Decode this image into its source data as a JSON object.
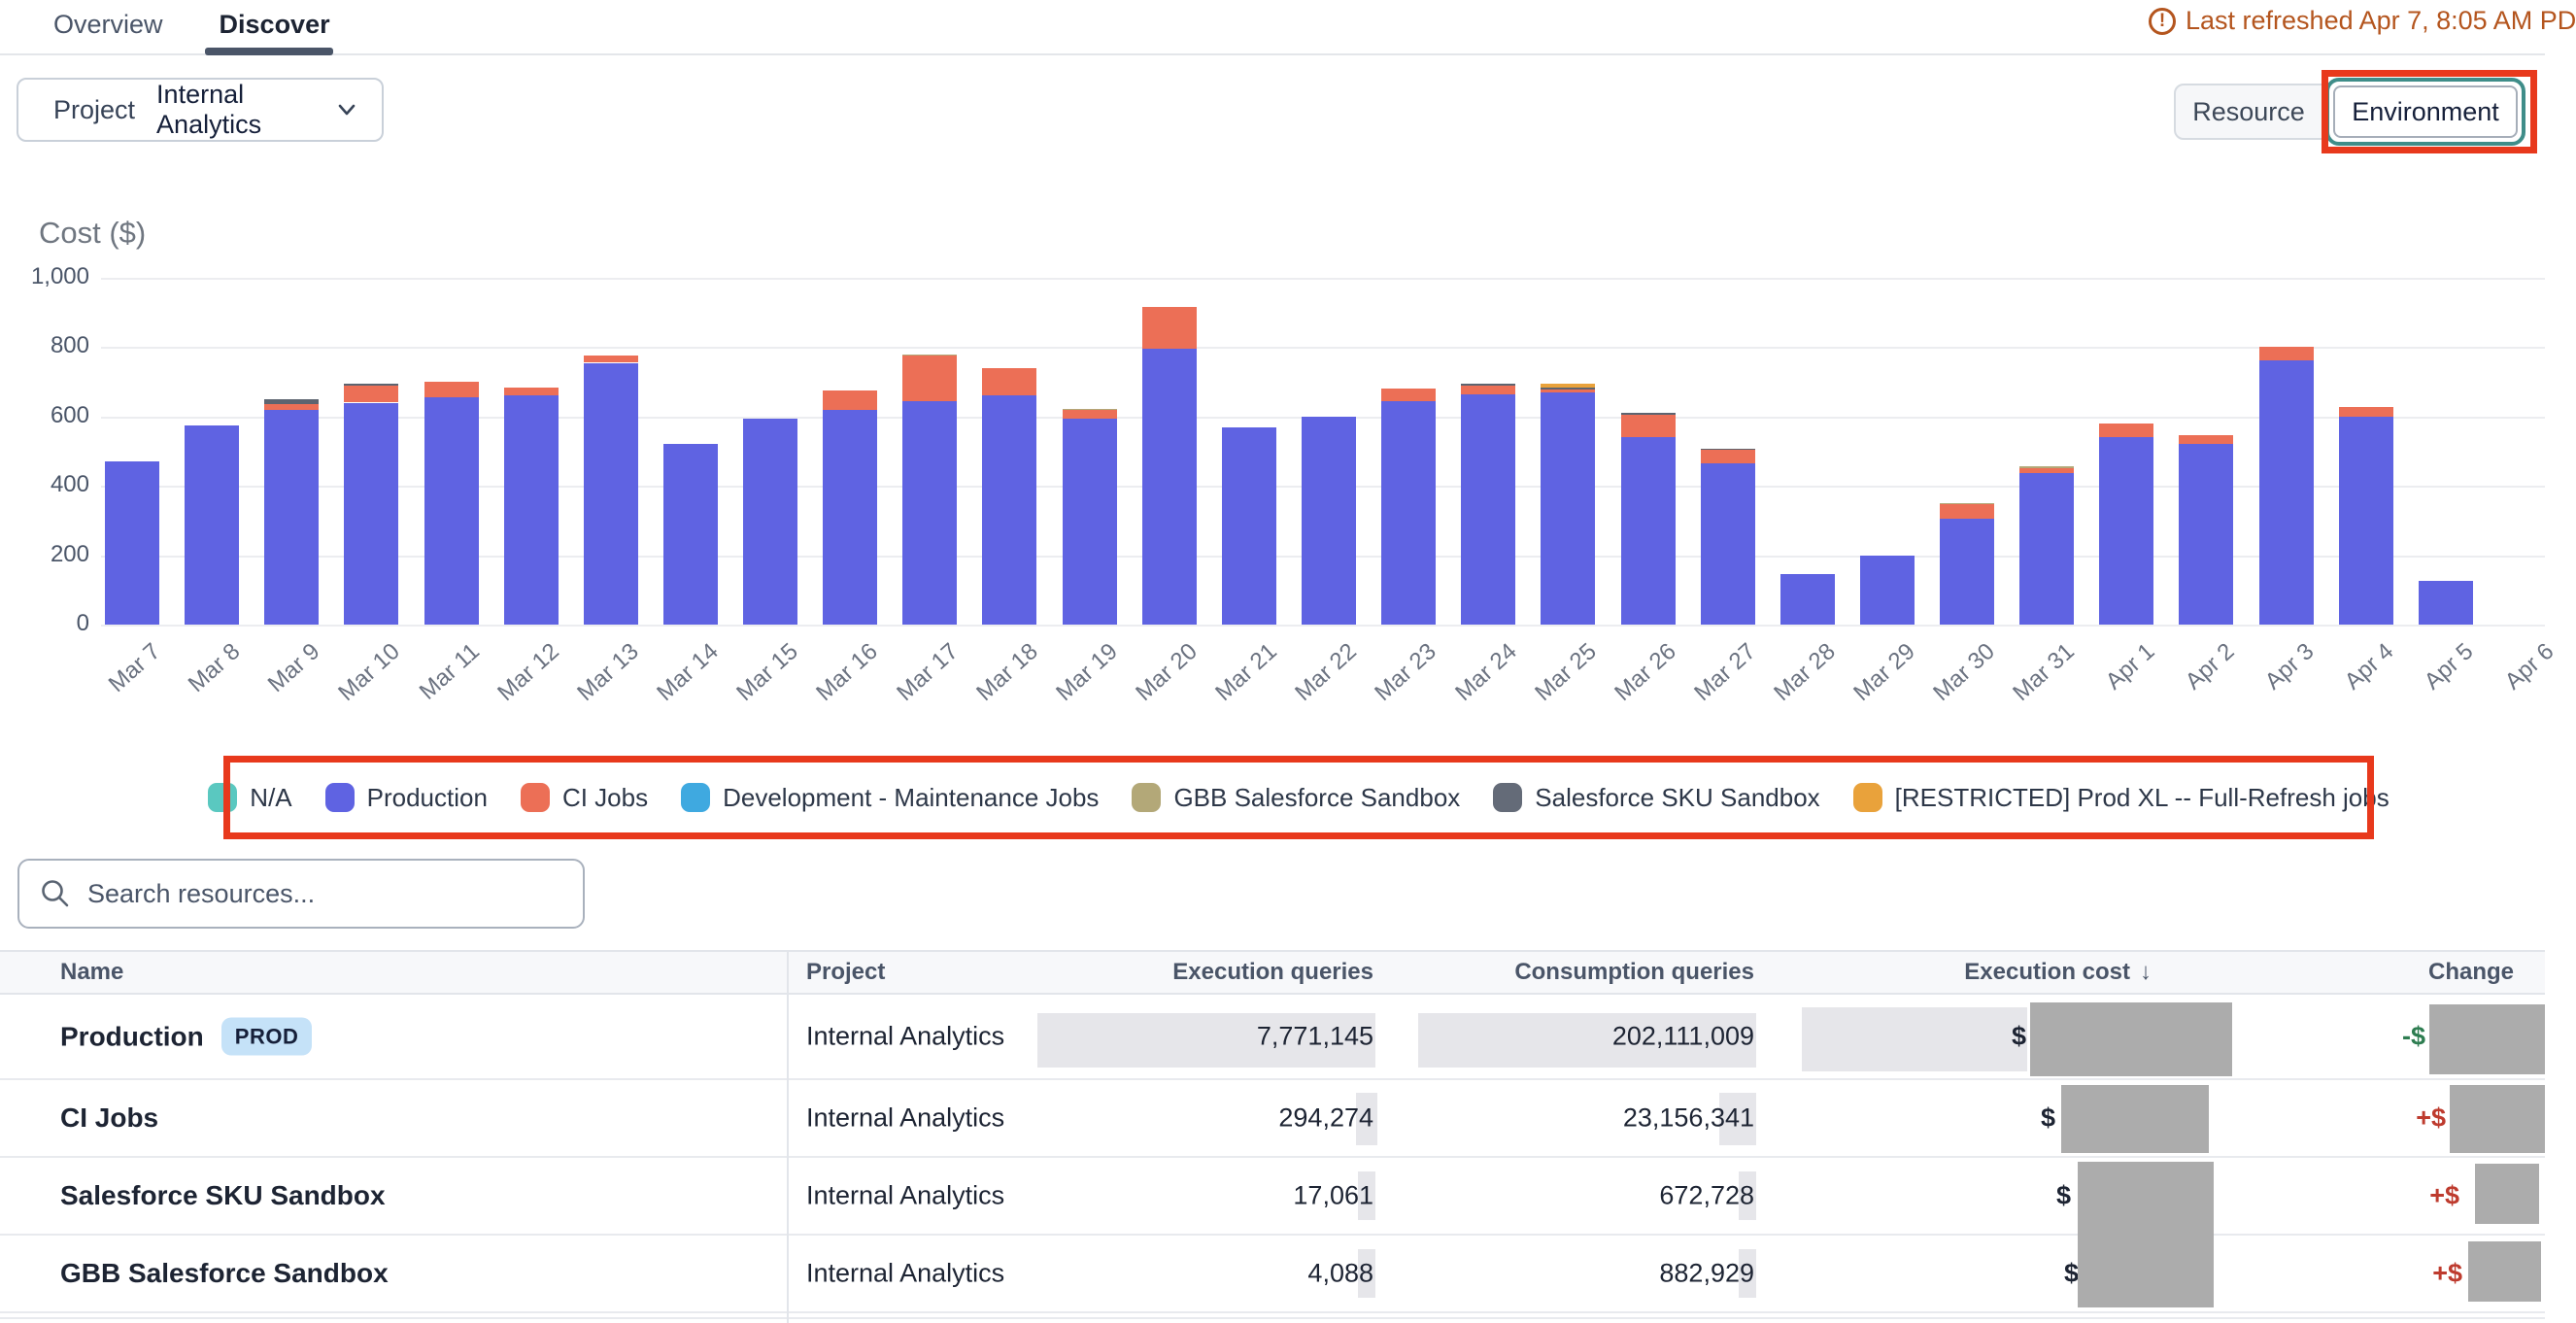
{
  "header": {
    "tabs": [
      {
        "label": "Overview",
        "active": false
      },
      {
        "label": "Discover",
        "active": true
      }
    ],
    "last_refreshed": "Last refreshed Apr 7, 8:05 AM PD",
    "warning_icon": "exclamation-circle"
  },
  "filters": {
    "project_label": "Project",
    "project_value": "Internal Analytics",
    "group_by_buttons": [
      {
        "label": "Resource",
        "selected": false
      },
      {
        "label": "Environment",
        "selected": true
      }
    ]
  },
  "chart_data": {
    "type": "bar",
    "stacked": true,
    "title": "Cost ($)",
    "ylabel": "Cost ($)",
    "ylim": [
      0,
      1000
    ],
    "ytick_values": [
      0,
      200,
      400,
      600,
      800,
      1000
    ],
    "yticks": [
      "0",
      "200",
      "400",
      "600",
      "800",
      "1,000"
    ],
    "grid": true,
    "legend_position": "bottom",
    "series_order": [
      "production",
      "ci_jobs",
      "salesforce_sku_sandbox",
      "gbb_salesforce_sandbox",
      "restricted_prod_xl"
    ],
    "series_colors": {
      "na": "#5AC8C0",
      "production": "#5F63E2",
      "ci_jobs": "#EC6F56",
      "development_maintenance": "#3FA9E0",
      "gbb_salesforce_sandbox": "#B3A878",
      "salesforce_sku_sandbox": "#5D6470",
      "restricted_prod_xl": "#E9A23B"
    },
    "legend": [
      {
        "label": "N/A",
        "color": "#5AC8C0"
      },
      {
        "label": "Production",
        "color": "#5F63E2"
      },
      {
        "label": "CI Jobs",
        "color": "#EC6F56"
      },
      {
        "label": "Development - Maintenance Jobs",
        "color": "#3FA9E0"
      },
      {
        "label": "GBB Salesforce Sandbox",
        "color": "#B3A878"
      },
      {
        "label": "Salesforce SKU Sandbox",
        "color": "#646B78"
      },
      {
        "label": "[RESTRICTED] Prod XL -- Full-Refresh jobs",
        "color": "#E9A23B"
      }
    ],
    "bars": [
      {
        "date": "Mar 7",
        "values": {
          "production": 470
        }
      },
      {
        "date": "Mar 8",
        "values": {
          "production": 575
        }
      },
      {
        "date": "Mar 9",
        "values": {
          "production": 620,
          "ci_jobs": 15,
          "salesforce_sku_sandbox": 15
        }
      },
      {
        "date": "Mar 10",
        "values": {
          "production": 640,
          "ci_jobs": 50,
          "salesforce_sku_sandbox": 5
        }
      },
      {
        "date": "Mar 11",
        "values": {
          "production": 655,
          "ci_jobs": 45
        }
      },
      {
        "date": "Mar 12",
        "values": {
          "production": 660,
          "ci_jobs": 25
        }
      },
      {
        "date": "Mar 13",
        "values": {
          "production": 755,
          "ci_jobs": 20
        }
      },
      {
        "date": "Mar 14",
        "values": {
          "production": 520
        }
      },
      {
        "date": "Mar 15",
        "values": {
          "production": 595
        }
      },
      {
        "date": "Mar 16",
        "values": {
          "production": 620,
          "ci_jobs": 55
        }
      },
      {
        "date": "Mar 17",
        "values": {
          "production": 645,
          "ci_jobs": 130,
          "gbb_salesforce_sandbox": 5
        }
      },
      {
        "date": "Mar 18",
        "values": {
          "production": 660,
          "ci_jobs": 80
        }
      },
      {
        "date": "Mar 19",
        "values": {
          "production": 595,
          "ci_jobs": 25,
          "gbb_salesforce_sandbox": 3
        }
      },
      {
        "date": "Mar 20",
        "values": {
          "production": 795,
          "ci_jobs": 120
        }
      },
      {
        "date": "Mar 21",
        "values": {
          "production": 570
        }
      },
      {
        "date": "Mar 22",
        "values": {
          "production": 600
        }
      },
      {
        "date": "Mar 23",
        "values": {
          "production": 645,
          "ci_jobs": 35
        }
      },
      {
        "date": "Mar 24",
        "values": {
          "production": 665,
          "ci_jobs": 25,
          "salesforce_sku_sandbox": 5
        }
      },
      {
        "date": "Mar 25",
        "values": {
          "production": 670,
          "ci_jobs": 8,
          "salesforce_sku_sandbox": 5,
          "restricted_prod_xl": 12
        }
      },
      {
        "date": "Mar 26",
        "values": {
          "production": 540,
          "ci_jobs": 65,
          "salesforce_sku_sandbox": 5
        }
      },
      {
        "date": "Mar 27",
        "values": {
          "production": 465,
          "ci_jobs": 40,
          "salesforce_sku_sandbox": 3
        }
      },
      {
        "date": "Mar 28",
        "values": {
          "production": 145
        }
      },
      {
        "date": "Mar 29",
        "values": {
          "production": 200
        }
      },
      {
        "date": "Mar 30",
        "values": {
          "production": 305,
          "ci_jobs": 42,
          "gbb_salesforce_sandbox": 3
        }
      },
      {
        "date": "Mar 31",
        "values": {
          "production": 437,
          "ci_jobs": 15,
          "gbb_salesforce_sandbox": 5
        }
      },
      {
        "date": "Apr 1",
        "values": {
          "production": 540,
          "ci_jobs": 40
        }
      },
      {
        "date": "Apr 2",
        "values": {
          "production": 520,
          "ci_jobs": 27
        }
      },
      {
        "date": "Apr 3",
        "values": {
          "production": 762,
          "ci_jobs": 38
        }
      },
      {
        "date": "Apr 4",
        "values": {
          "production": 600,
          "ci_jobs": 27
        }
      },
      {
        "date": "Apr 5",
        "values": {
          "production": 125
        }
      },
      {
        "date": "Apr 6",
        "values": {}
      }
    ]
  },
  "search": {
    "placeholder": "Search resources...",
    "value": ""
  },
  "table": {
    "columns": [
      "Name",
      "Project",
      "Execution queries",
      "Consumption queries",
      "Execution cost",
      "Change"
    ],
    "sort_column": "Execution cost",
    "sort_icon": "↓",
    "rows": [
      {
        "name": "Production",
        "badge": "PROD",
        "project": "Internal Analytics",
        "execution_queries": "7,771,145",
        "consumption_queries": "202,111,009",
        "execution_cost_prefix": "$",
        "execution_cost_redacted": true,
        "change_prefix": "-$",
        "change_color": "green",
        "change_redacted": true
      },
      {
        "name": "CI Jobs",
        "badge": "",
        "project": "Internal Analytics",
        "execution_queries": "294,274",
        "consumption_queries": "23,156,341",
        "execution_cost_prefix": "$",
        "execution_cost_redacted": true,
        "change_prefix": "+$",
        "change_color": "red",
        "change_redacted": true
      },
      {
        "name": "Salesforce SKU Sandbox",
        "badge": "",
        "project": "Internal Analytics",
        "execution_queries": "17,061",
        "consumption_queries": "672,728",
        "execution_cost_prefix": "$",
        "execution_cost_redacted": true,
        "change_prefix": "+$",
        "change_color": "red",
        "change_redacted": true
      },
      {
        "name": "GBB Salesforce Sandbox",
        "badge": "",
        "project": "Internal Analytics",
        "execution_queries": "4,088",
        "consumption_queries": "882,929",
        "execution_cost_prefix": "$",
        "execution_cost_redacted": true,
        "change_prefix": "+$",
        "change_color": "red",
        "change_redacted": true
      }
    ]
  },
  "colors": {
    "annotation_red": "#E8391C",
    "focus_ring_teal": "#3F8D89",
    "warning_text": "#B4551E",
    "redaction_dark": "#ACACAC",
    "redaction_light": "#E6E6EA",
    "badge_bg": "#C5E2F8",
    "change_positive": "#BE3B2E",
    "change_negative": "#2E7D51"
  }
}
